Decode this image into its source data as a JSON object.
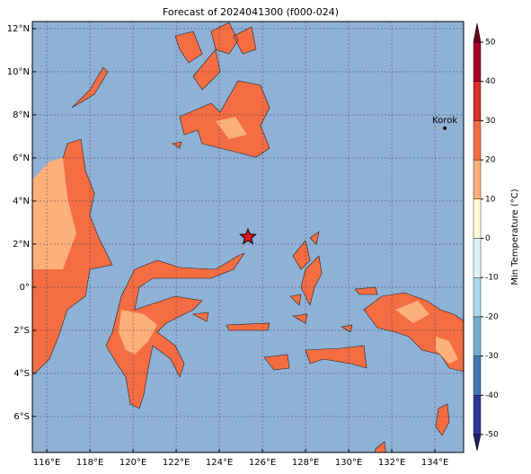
{
  "title": "Forecast of 2024041300 (f000-024)",
  "map": {
    "lonlim": [
      115.33,
      135.33
    ],
    "latlim": [
      -7.67,
      12.33
    ],
    "ocean_color": "#8fb1d6",
    "grid": true,
    "lon_ticks": [
      {
        "value": 116,
        "label": "116°E"
      },
      {
        "value": 118,
        "label": "118°E"
      },
      {
        "value": 120,
        "label": "120°E"
      },
      {
        "value": 122,
        "label": "122°E"
      },
      {
        "value": 124,
        "label": "124°E"
      },
      {
        "value": 126,
        "label": "126°E"
      },
      {
        "value": 128,
        "label": "128°E"
      },
      {
        "value": 130,
        "label": "130°E"
      },
      {
        "value": 132,
        "label": "132°E"
      },
      {
        "value": 134,
        "label": "134°E"
      }
    ],
    "lat_ticks": [
      {
        "value": 12,
        "label": "12°N"
      },
      {
        "value": 10,
        "label": "10°N"
      },
      {
        "value": 8,
        "label": "8°N"
      },
      {
        "value": 6,
        "label": "6°N"
      },
      {
        "value": 4,
        "label": "4°N"
      },
      {
        "value": 2,
        "label": "2°N"
      },
      {
        "value": 0,
        "label": "0°"
      },
      {
        "value": -2,
        "label": "2°S"
      },
      {
        "value": -4,
        "label": "4°S"
      },
      {
        "value": -6,
        "label": "6°S"
      }
    ],
    "marker": {
      "lon": 125.33,
      "lat": 2.33,
      "color": "#e8161b"
    },
    "annotations": [
      {
        "label": "Korok",
        "lon": 134.46,
        "lat": 7.38
      }
    ]
  },
  "colorbar": {
    "label": "Min Temperature (°C)",
    "ticks": [
      -50,
      -40,
      -30,
      -20,
      -10,
      0,
      10,
      20,
      30,
      40,
      50
    ],
    "colors": [
      "#313695",
      "#4575b4",
      "#74add1",
      "#abd9e9",
      "#e0f3f8",
      "#ffffd9",
      "#fdb07a",
      "#f46d43",
      "#d73027",
      "#a50026"
    ],
    "under_color": "#1f2466",
    "over_color": "#6b0020"
  }
}
